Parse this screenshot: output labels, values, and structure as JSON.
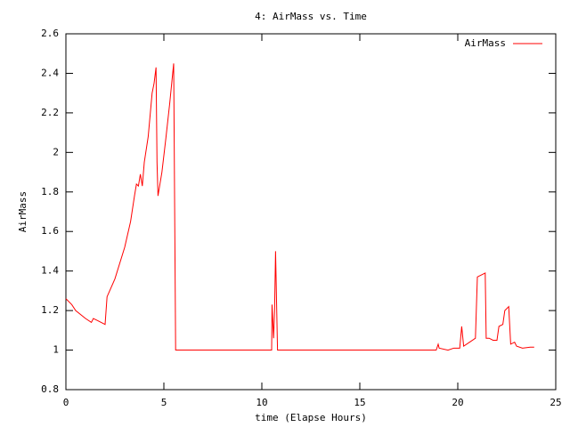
{
  "chart_data": {
    "type": "line",
    "title": "4: AirMass vs. Time",
    "x_label": "time (Elapse Hours)",
    "y_label": "AirMass",
    "xlim": [
      0,
      25
    ],
    "xticks": [
      0,
      5,
      10,
      15,
      20,
      25
    ],
    "ylim": [
      0.8,
      2.6
    ],
    "yticks": [
      0.8,
      1,
      1.2,
      1.4,
      1.6,
      1.8,
      2,
      2.2,
      2.4,
      2.6
    ],
    "legend": "upper right",
    "series": [
      {
        "name": "AirMass",
        "color": "#ff0000",
        "x": [
          0,
          0.3,
          0.5,
          1.0,
          1.3,
          1.4,
          1.6,
          2.0,
          2.1,
          2.5,
          3.0,
          3.3,
          3.5,
          3.6,
          3.7,
          3.8,
          3.9,
          4.0,
          4.2,
          4.4,
          4.5,
          4.6,
          4.65,
          4.7,
          4.9,
          5.1,
          5.3,
          5.4,
          5.5,
          5.55,
          5.6,
          10.5,
          10.52,
          10.6,
          10.65,
          10.7,
          10.8,
          18.9,
          19.0,
          19.05,
          19.5,
          19.8,
          20.1,
          20.2,
          20.3,
          20.6,
          20.9,
          21.0,
          21.4,
          21.45,
          21.6,
          21.8,
          22.0,
          22.1,
          22.3,
          22.4,
          22.6,
          22.7,
          22.9,
          23.0,
          23.3,
          23.7,
          23.9
        ],
        "values": [
          1.26,
          1.23,
          1.2,
          1.16,
          1.14,
          1.16,
          1.15,
          1.13,
          1.27,
          1.36,
          1.52,
          1.65,
          1.78,
          1.84,
          1.83,
          1.89,
          1.83,
          1.95,
          2.08,
          2.3,
          2.35,
          2.43,
          1.95,
          1.78,
          1.9,
          2.07,
          2.25,
          2.35,
          2.45,
          1.72,
          1.0,
          1.0,
          1.23,
          1.06,
          1.2,
          1.5,
          1.0,
          1.0,
          1.03,
          1.01,
          1.0,
          1.01,
          1.01,
          1.12,
          1.02,
          1.04,
          1.06,
          1.37,
          1.39,
          1.06,
          1.06,
          1.05,
          1.05,
          1.12,
          1.13,
          1.2,
          1.22,
          1.03,
          1.04,
          1.02,
          1.01,
          1.015,
          1.015
        ]
      }
    ]
  }
}
